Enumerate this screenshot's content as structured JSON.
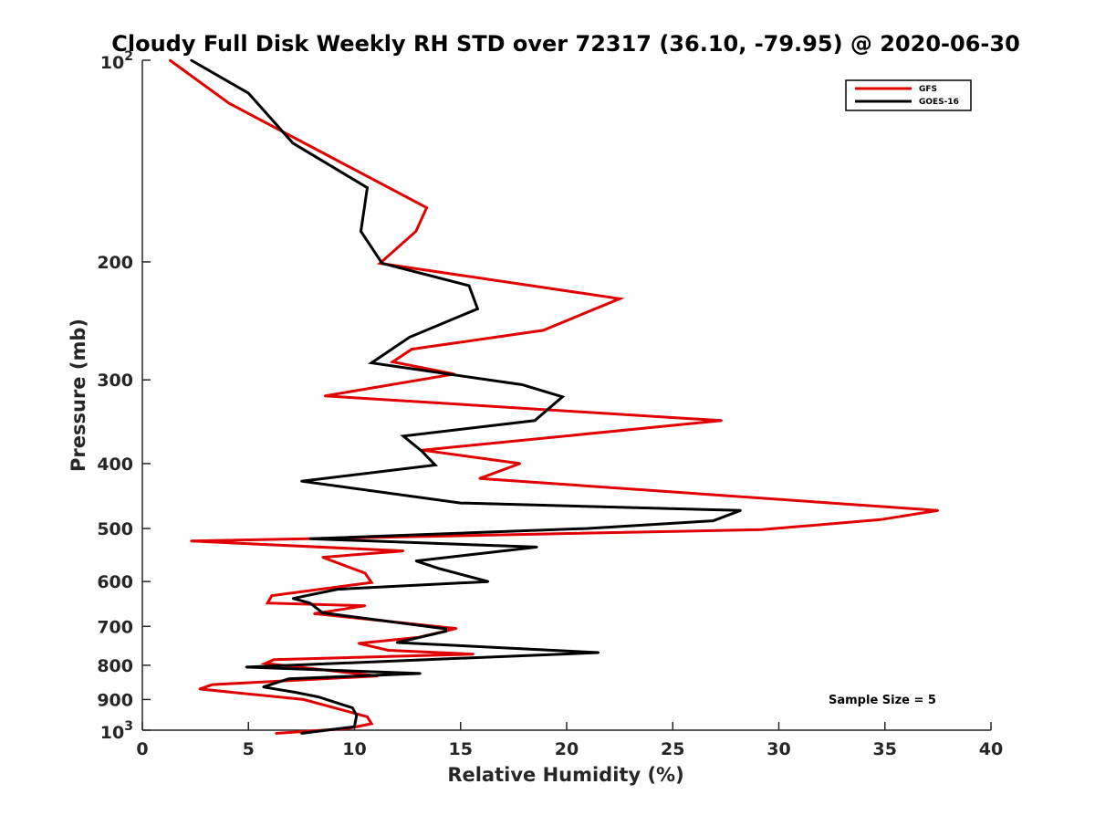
{
  "chart_data": {
    "type": "line",
    "title": "Cloudy Full Disk Weekly RH STD over 72317 (36.10, -79.95) @ 2020-06-30",
    "xlabel": "Relative Humidity (%)",
    "ylabel": "Pressure (mb)",
    "xlim": [
      0,
      40
    ],
    "ylim": [
      100,
      1000
    ],
    "yscale": "log",
    "y_reversed": true,
    "x_ticks": [
      "0",
      "5",
      "10",
      "15",
      "20",
      "25",
      "30",
      "35",
      "40"
    ],
    "y_ticks": [
      {
        "value": 100,
        "base": "10",
        "exp": "2",
        "label": ""
      },
      {
        "value": 200,
        "label": "200"
      },
      {
        "value": 300,
        "label": "300"
      },
      {
        "value": 400,
        "label": "400"
      },
      {
        "value": 500,
        "label": "500"
      },
      {
        "value": 600,
        "label": "600"
      },
      {
        "value": 700,
        "label": "700"
      },
      {
        "value": 800,
        "label": "800"
      },
      {
        "value": 900,
        "label": "900"
      },
      {
        "value": 1000,
        "base": "10",
        "exp": "3",
        "label": ""
      }
    ],
    "grid": false,
    "legend_position": "top-right",
    "annotation": "Sample Size = 5",
    "series": [
      {
        "name": "GFS",
        "color": "#e00000",
        "x": [
          1.3,
          4.1,
          13.4,
          12.9,
          11.2,
          22.5,
          18.9,
          12.7,
          11.8,
          14.7,
          8.6,
          27.3,
          13.2,
          17.8,
          15.9,
          37.5,
          34.8,
          29.2,
          2.3,
          12.3,
          8.5,
          10.5,
          10.8,
          6.1,
          5.9,
          10.5,
          8.1,
          14.8,
          13.0,
          10.2,
          11.6,
          15.6,
          6.2,
          5.8,
          11.1,
          3.3,
          2.7,
          7.6,
          10.6,
          10.8,
          9.7,
          6.3
        ],
        "y": [
          100,
          116,
          166,
          180,
          201,
          227,
          253,
          270,
          282,
          294,
          317,
          345,
          382,
          400,
          421,
          470,
          485,
          502,
          522,
          540,
          552,
          583,
          602,
          630,
          646,
          652,
          670,
          705,
          727,
          742,
          760,
          770,
          785,
          795,
          830,
          855,
          868,
          900,
          955,
          978,
          994,
          1011
        ]
      },
      {
        "name": "GOES-16",
        "color": "#000000",
        "x": [
          2.3,
          5.0,
          7.1,
          10.6,
          10.3,
          11.3,
          15.4,
          15.8,
          12.6,
          10.8,
          17.9,
          19.8,
          18.5,
          12.3,
          13.2,
          13.8,
          7.5,
          15.0,
          28.2,
          26.9,
          21.0,
          7.9,
          18.6,
          12.9,
          14.0,
          16.3,
          9.2,
          7.1,
          7.9,
          8.5,
          14.3,
          14.3,
          12.0,
          21.5,
          4.9,
          13.1,
          6.9,
          5.7,
          7.2,
          8.3,
          9.9,
          10.1,
          10.0,
          7.5
        ],
        "y": [
          100,
          112,
          133,
          155,
          180,
          201,
          217,
          235,
          259,
          283,
          305,
          318,
          345,
          364,
          384,
          402,
          425,
          458,
          470,
          487,
          500,
          518,
          533,
          559,
          574,
          600,
          616,
          636,
          646,
          668,
          706,
          712,
          740,
          766,
          805,
          823,
          838,
          862,
          878,
          892,
          926,
          950,
          988,
          1011
        ]
      }
    ]
  }
}
